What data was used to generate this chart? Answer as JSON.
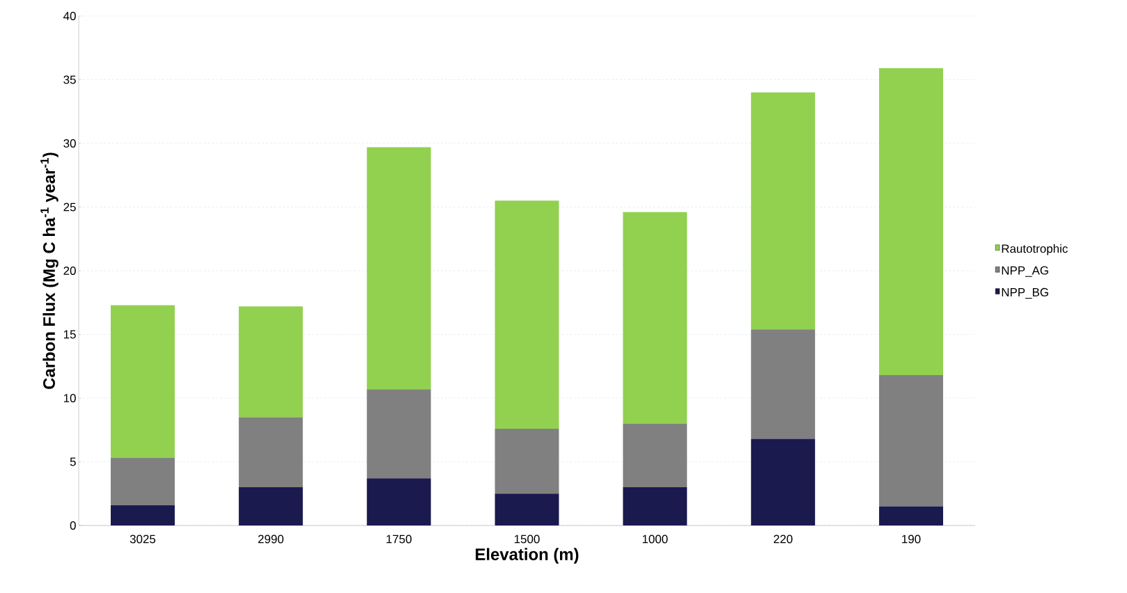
{
  "chart_data": {
    "type": "bar",
    "stacked": true,
    "xlabel": "Elevation (m)",
    "ylabel": "Carbon Flux (Mg C ha$^{-1}$ year$^{-1}$)",
    "categories": [
      "3025",
      "2990",
      "1750",
      "1500",
      "1000",
      "220",
      "190"
    ],
    "series": [
      {
        "name": "NPP_BG",
        "color": "#1b1a4e",
        "values": [
          1.6,
          3.0,
          3.7,
          2.5,
          3.0,
          6.8,
          1.5
        ]
      },
      {
        "name": "NPP_AG",
        "color": "#808080",
        "values": [
          3.7,
          5.5,
          7.0,
          5.1,
          5.0,
          8.6,
          10.3
        ]
      },
      {
        "name": "Rautotrophic",
        "color": "#92d050",
        "values": [
          12.0,
          8.7,
          19.0,
          17.9,
          16.6,
          18.6,
          24.1
        ]
      }
    ],
    "ylim": [
      0,
      40
    ],
    "yticks": [
      0,
      5,
      10,
      15,
      20,
      25,
      30,
      35,
      40
    ],
    "grid": "y",
    "legend": "right"
  }
}
